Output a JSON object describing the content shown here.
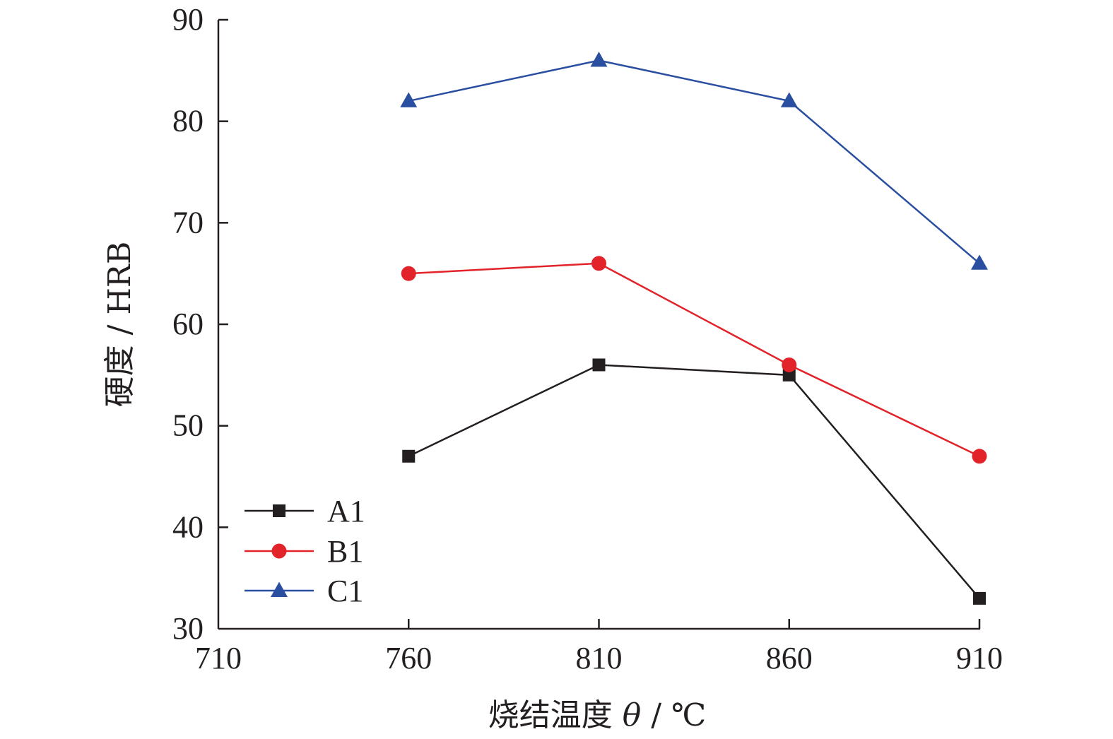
{
  "chart_data": {
    "type": "line",
    "x": [
      760,
      810,
      860,
      910
    ],
    "series": [
      {
        "name": "A1",
        "values": [
          47,
          56,
          55,
          33
        ],
        "color": "#231f20",
        "marker": "square"
      },
      {
        "name": "B1",
        "values": [
          65,
          66,
          56,
          47
        ],
        "color": "#e2232a",
        "marker": "circle"
      },
      {
        "name": "C1",
        "values": [
          82,
          86,
          82,
          66
        ],
        "color": "#2a4ea0",
        "marker": "triangle"
      }
    ],
    "xlabel": "烧结温度 θ / ℃",
    "xlabel_parts": {
      "main": "烧结温度 ",
      "symbol": "θ",
      "unit": " / ℃"
    },
    "ylabel": "硬度 / HRB",
    "xlim": [
      710,
      910
    ],
    "ylim": [
      30,
      90
    ],
    "xticks": [
      "710",
      "760",
      "810",
      "860",
      "910"
    ],
    "yticks": [
      "30",
      "40",
      "50",
      "60",
      "70",
      "80",
      "90"
    ],
    "legend_position": "bottom-left",
    "grid": false
  }
}
